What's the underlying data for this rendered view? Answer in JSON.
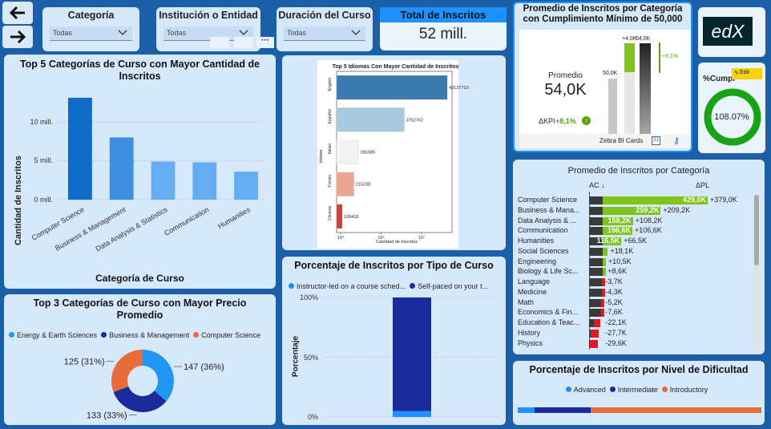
{
  "nav": {
    "back_icon": "arrow-left-icon",
    "forward_icon": "arrow-right-icon"
  },
  "slicers": [
    {
      "title": "Categoría",
      "value": "Todas"
    },
    {
      "title": "Institución o Entidad",
      "value": "Todas"
    },
    {
      "title": "Duración del Curso",
      "value": "Todas"
    }
  ],
  "kpi_total": {
    "title": "Total de Inscritos",
    "value": "52 mill."
  },
  "card_zebra": {
    "title": "Promedio de Inscritos por Categoría con Cumplimiento Mínimo de 50,000",
    "promedio_label": "Promedio",
    "promedio_value": "54,0K",
    "dkpi_label": "ΔKPI",
    "dkpi_value": "+8,1%",
    "bar_labels": {
      "base": "50,0K",
      "delta": "+4,0K",
      "total": "54,0K",
      "pct": "+8,1%"
    },
    "footer": "Zebra BI Cards"
  },
  "edx_logo": "edX",
  "cumpl": {
    "title": "%Cumpl",
    "edit": "Edit",
    "value": "108.07%",
    "fraction": 1.0
  },
  "top5_categories": {
    "title": "Top 5 Categorías de Curso con Mayor Cantidad de Inscritos",
    "ylabel": "Cantidad de Inscritos",
    "xlabel": "Categoría de Curso",
    "yticks": [
      "0 mill.",
      "5 mill.",
      "10 mill."
    ]
  },
  "top5_languages": {
    "title": "Top 5 Idiomas Con Mayor Cantidad de Inscritos",
    "ylabel": "Idioma",
    "xlabel": "Cantidad de Inscritos",
    "xticks": [
      "10⁵",
      "10⁶",
      "10⁷"
    ]
  },
  "tipo_curso": {
    "title": "Porcentaje de Inscritos por Tipo de Curso",
    "legend": [
      {
        "label": "Instructor-led on a course sched...",
        "color": "#1e90ff"
      },
      {
        "label": "Self-paced on your t...",
        "color": "#1a2b9c"
      }
    ],
    "ylabel": "Porcentaje",
    "yticks": [
      "0%",
      "50%",
      "100%"
    ]
  },
  "precio": {
    "title": "Top 3 Categorías de Curso con Mayor Precio Promedio",
    "legend": [
      {
        "label": "Energy & Earth Sciences",
        "color": "#2196f3"
      },
      {
        "label": "Business & Management",
        "color": "#1a2b9c"
      },
      {
        "label": "Computer Science",
        "color": "#e86c3a"
      }
    ],
    "slice_labels": [
      "147 (36%)",
      "133 (33%)",
      "125 (31%)"
    ]
  },
  "prom_categoria": {
    "title": "Promedio de Inscritos por Categoría",
    "col_ac": "AC ↓",
    "col_dpl": "ΔPL",
    "rows": [
      {
        "name": "Computer Science",
        "ac": "429,0K",
        "delta": "+379,0K"
      },
      {
        "name": "Business & Mana...",
        "ac": "259,2K",
        "delta": "+209,2K"
      },
      {
        "name": "Data Analysis & ...",
        "ac": "158,2K",
        "delta": "+108,2K"
      },
      {
        "name": "Communication",
        "ac": "156,6K",
        "delta": "+106,6K"
      },
      {
        "name": "Humanities",
        "ac": "116,5K",
        "delta": "+66,5K"
      },
      {
        "name": "Social Sciences",
        "ac": "",
        "delta": "+18,1K"
      },
      {
        "name": "Engineering",
        "ac": "",
        "delta": "+10,5K"
      },
      {
        "name": "Biology & Life Sc...",
        "ac": "",
        "delta": "+8,6K"
      },
      {
        "name": "Language",
        "ac": "",
        "delta": "-3,7K"
      },
      {
        "name": "Medicine",
        "ac": "",
        "delta": "-4,3K"
      },
      {
        "name": "Math",
        "ac": "",
        "delta": "-5,2K"
      },
      {
        "name": "Economics & Fin...",
        "ac": "",
        "delta": "-7,6K"
      },
      {
        "name": "Education & Teac...",
        "ac": "",
        "delta": "-22,1K"
      },
      {
        "name": "History",
        "ac": "",
        "delta": "-27,7K"
      },
      {
        "name": "Physics",
        "ac": "",
        "delta": "-29,6K"
      }
    ]
  },
  "dificultad": {
    "title": "Porcentaje de Inscritos por Nivel de Dificultad",
    "legend": [
      {
        "label": "Advanced",
        "color": "#1e90ff"
      },
      {
        "label": "Intermediate",
        "color": "#1a2b9c"
      },
      {
        "label": "Introductory",
        "color": "#e86c3a"
      }
    ],
    "shares": [
      0.07,
      0.23,
      0.7
    ]
  },
  "chart_data": [
    {
      "type": "bar",
      "title": "Top 5 Categorías de Curso con Mayor Cantidad de Inscritos",
      "xlabel": "Categoría de Curso",
      "ylabel": "Cantidad de Inscritos",
      "categories": [
        "Computer Science",
        "Business & Management",
        "Data Analysis & Statistics",
        "Communication",
        "Humanities"
      ],
      "values": [
        13.1,
        8.0,
        4.9,
        4.8,
        3.6
      ],
      "ylim": [
        0,
        14
      ],
      "unit": "mill."
    },
    {
      "type": "bar",
      "orientation": "horizontal",
      "title": "Top 5 Idiomas Con Mayor Cantidad de Inscritos",
      "xlabel": "Cantidad de Inscritos",
      "ylabel": "Idioma",
      "categories": [
        "English",
        "Español",
        "Italian",
        "French",
        "Chinese"
      ],
      "values": [
        43127710,
        3752762,
        281585,
        215108,
        109418
      ],
      "labels": [
        "43127710",
        "3752762",
        "281585",
        "215108",
        "109418"
      ],
      "xscale": "log"
    },
    {
      "type": "bar",
      "stacked": true,
      "title": "Porcentaje de Inscritos por Tipo de Curso",
      "ylabel": "Porcentaje",
      "series": [
        {
          "name": "Instructor-led on a course sched...",
          "values": [
            5
          ]
        },
        {
          "name": "Self-paced on your t...",
          "values": [
            95
          ]
        }
      ],
      "ylim": [
        0,
        100
      ]
    },
    {
      "type": "pie",
      "title": "Top 3 Categorías de Curso con Mayor Precio Promedio",
      "categories": [
        "Energy & Earth Sciences",
        "Business & Management",
        "Computer Science"
      ],
      "values": [
        147,
        133,
        125
      ],
      "labels": [
        "147 (36%)",
        "133 (33%)",
        "125 (31%)"
      ]
    },
    {
      "type": "bar",
      "orientation": "horizontal",
      "title": "Promedio de Inscritos por Categoría",
      "categories": [
        "Computer Science",
        "Business & Mana...",
        "Data Analysis & ...",
        "Communication",
        "Humanities",
        "Social Sciences",
        "Engineering",
        "Biology & Life Sc...",
        "Language",
        "Medicine",
        "Math",
        "Economics & Fin...",
        "Education & Teac...",
        "History",
        "Physics"
      ],
      "values": [
        429.0,
        259.2,
        158.2,
        156.6,
        116.5,
        68.1,
        60.5,
        58.6,
        46.3,
        45.7,
        44.8,
        42.4,
        27.9,
        22.3,
        20.4
      ],
      "delta": [
        379.0,
        209.2,
        108.2,
        106.6,
        66.5,
        18.1,
        10.5,
        8.6,
        -3.7,
        -4.3,
        -5.2,
        -7.6,
        -22.1,
        -27.7,
        -29.6
      ],
      "unit": "K"
    }
  ]
}
